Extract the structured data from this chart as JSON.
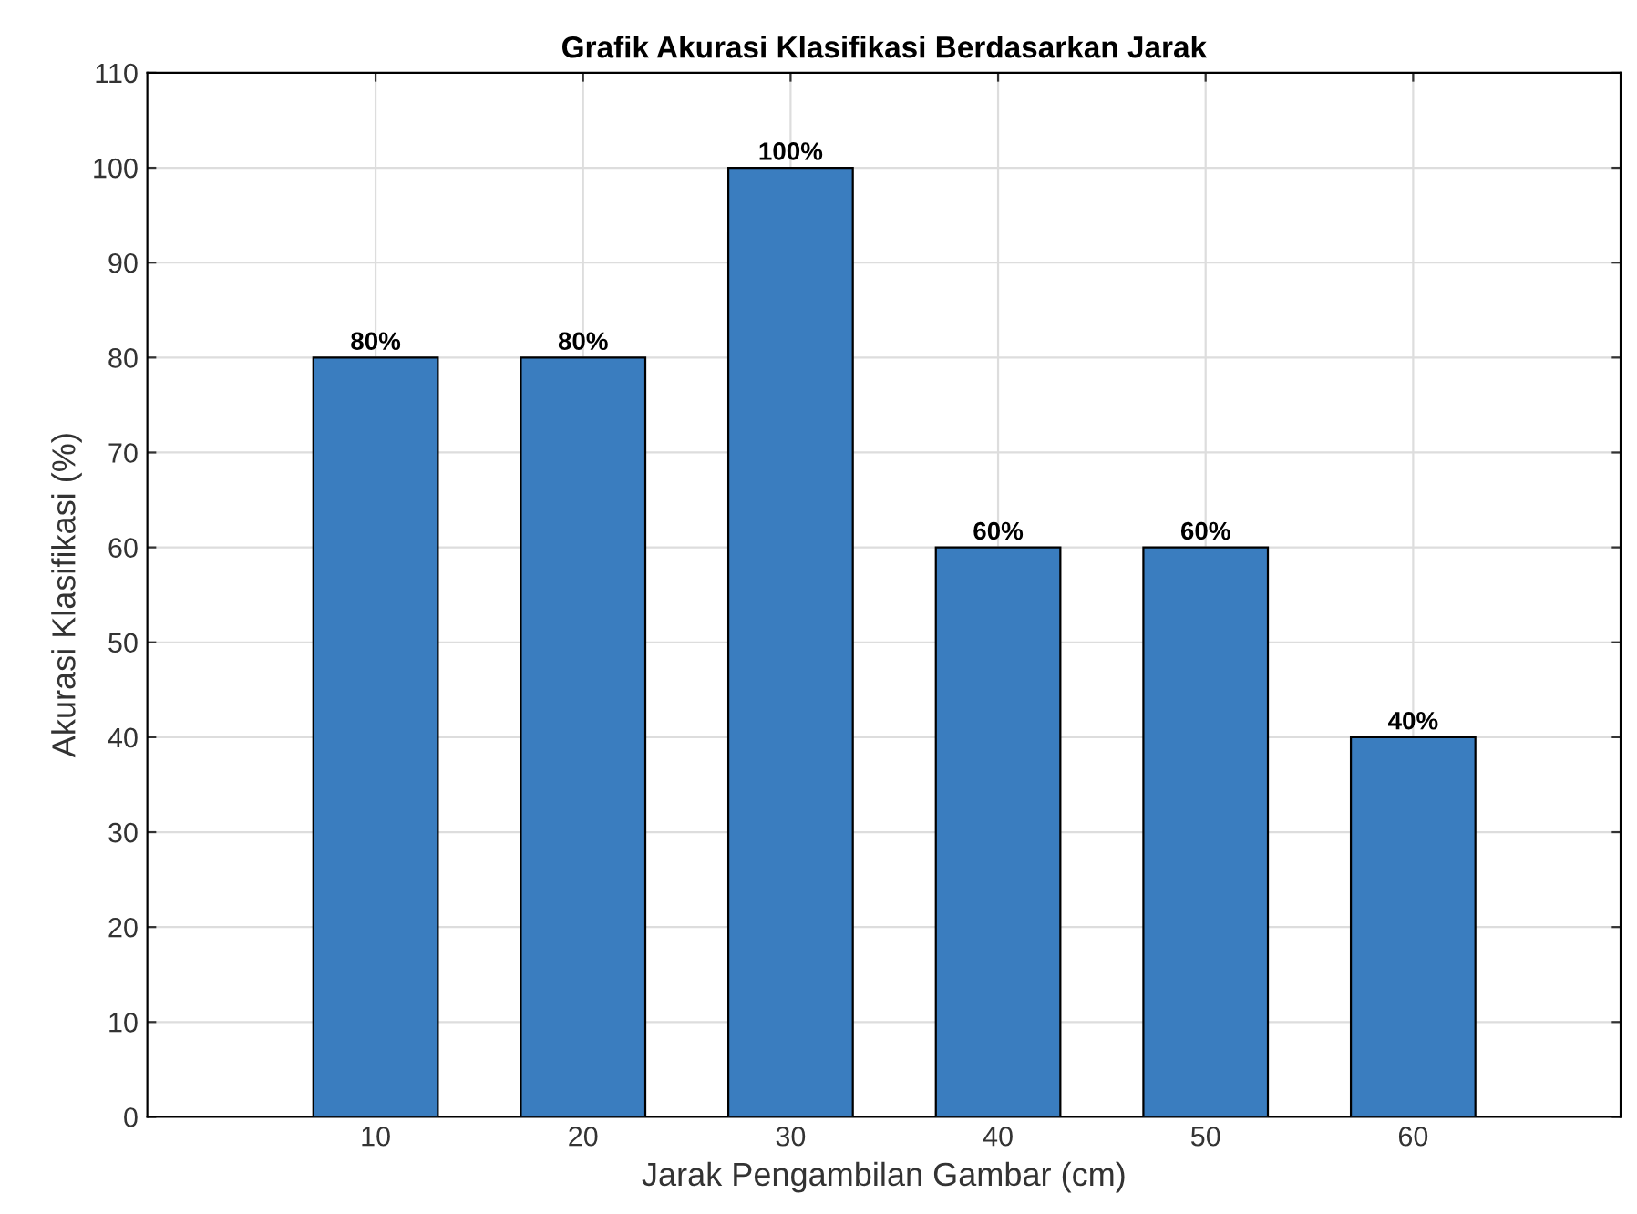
{
  "chart_data": {
    "type": "bar",
    "title": "Grafik Akurasi Klasifikasi Berdasarkan Jarak",
    "xlabel": "Jarak Pengambilan Gambar (cm)",
    "ylabel": "Akurasi Klasifikasi (%)",
    "x": [
      10,
      20,
      30,
      40,
      50,
      60
    ],
    "values": [
      80,
      80,
      100,
      60,
      60,
      40
    ],
    "value_labels": [
      "80%",
      "80%",
      "100%",
      "60%",
      "60%",
      "40%"
    ],
    "color": "#3a7dbf",
    "xlim": [
      -1,
      70
    ],
    "xticks": [
      10,
      20,
      30,
      40,
      50,
      60
    ],
    "ylim": [
      0,
      110
    ],
    "yticks": [
      0,
      10,
      20,
      30,
      40,
      50,
      60,
      70,
      80,
      90,
      100,
      110
    ],
    "grid": true
  }
}
